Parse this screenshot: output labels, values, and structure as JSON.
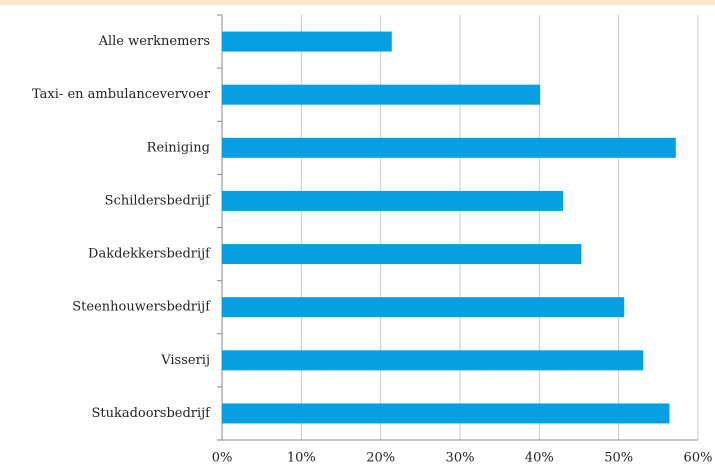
{
  "chart_data": {
    "type": "bar",
    "orientation": "horizontal",
    "categories": [
      "Alle werknemers",
      "Taxi- en ambulancevervoer",
      "Reiniging",
      "Schildersbedrijf",
      "Dakdekkersbedrijf",
      "Steenhouwersbedrijf",
      "Visserij",
      "Stukadoorsbedrijf"
    ],
    "values": [
      21.4,
      40.1,
      57.2,
      43.0,
      45.3,
      50.7,
      53.1,
      56.4
    ],
    "color": "#069fe2",
    "xlim": [
      0,
      60
    ],
    "xticks": [
      {
        "value": 0,
        "label": "0%"
      },
      {
        "value": 10,
        "label": "10%"
      },
      {
        "value": 20,
        "label": "20%"
      },
      {
        "value": 30,
        "label": "30%"
      },
      {
        "value": 40,
        "label": "40%"
      },
      {
        "value": 50,
        "label": "50%"
      },
      {
        "value": 60,
        "label": "60%"
      }
    ],
    "grid": true
  }
}
